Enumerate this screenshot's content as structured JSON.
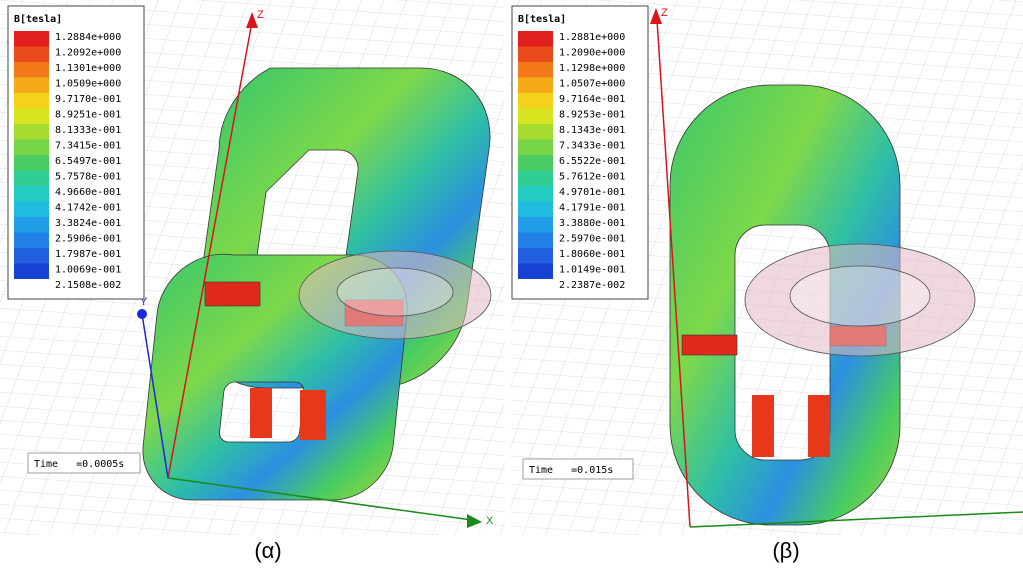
{
  "panels": [
    {
      "legend": {
        "title": "B[tesla]",
        "values": [
          "1.2884e+000",
          "1.2092e+000",
          "1.1301e+000",
          "1.0509e+000",
          "9.7170e-001",
          "8.9251e-001",
          "8.1333e-001",
          "7.3415e-001",
          "6.5497e-001",
          "5.7578e-001",
          "4.9660e-001",
          "4.1742e-001",
          "3.3824e-001",
          "2.5906e-001",
          "1.7987e-001",
          "1.0069e-001",
          "2.1508e-002"
        ]
      },
      "time": "Time   =0.0005s",
      "axes": {
        "z": "Z",
        "x": "X",
        "y": "Y"
      },
      "caption": "(α)"
    },
    {
      "legend": {
        "title": "B[tesla]",
        "values": [
          "1.2881e+000",
          "1.2090e+000",
          "1.1298e+000",
          "1.0507e+000",
          "9.7164e-001",
          "8.9253e-001",
          "8.1343e-001",
          "7.3433e-001",
          "6.5522e-001",
          "5.7612e-001",
          "4.9701e-001",
          "4.1791e-001",
          "3.3880e-001",
          "2.5970e-001",
          "1.8060e-001",
          "1.0149e-001",
          "2.2387e-002"
        ]
      },
      "time": "Time   =0.015s",
      "axes": {
        "z": "Z"
      },
      "caption": "(β)"
    }
  ]
}
